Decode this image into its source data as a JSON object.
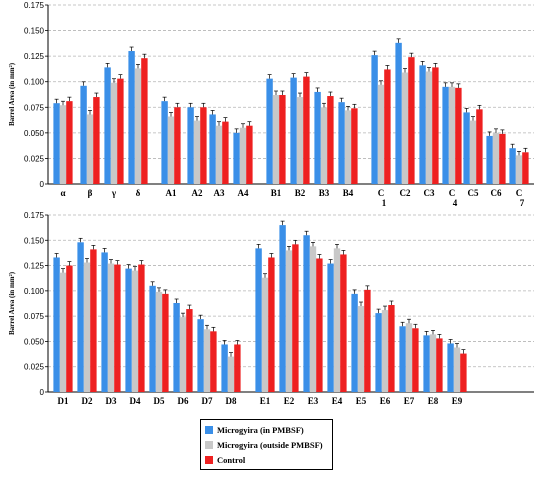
{
  "colors": {
    "pmbsf": "#3a8fe8",
    "outside": "#c8c8c8",
    "control": "#ee2020"
  },
  "legend": {
    "items": [
      {
        "label": "Microgyira (in PMBSF)",
        "color": "#3a8fe8"
      },
      {
        "label": "Microgyira (outside PMBSF)",
        "color": "#c8c8c8"
      },
      {
        "label": "Control",
        "color": "#ee2020"
      }
    ]
  },
  "chart_data": [
    {
      "type": "bar",
      "ylabel": "Barrel Area (in mm²)",
      "ylim": [
        0,
        0.175
      ],
      "yticks": [
        "0",
        "0.025",
        "0.050",
        "0.075",
        "0.100",
        "0.125",
        "0.150",
        "0.175"
      ],
      "categories": [
        "α",
        "β",
        "γ",
        "δ",
        "A1",
        "A2",
        "A3",
        "A4",
        "B1",
        "B2",
        "B3",
        "B4",
        "C 1",
        "C2",
        "C3",
        "C 4",
        "C5",
        "C6",
        "C 7"
      ],
      "series": [
        {
          "name": "Microgyira (in PMBSF)",
          "values": [
            0.079,
            0.096,
            0.114,
            0.13,
            0.081,
            0.075,
            0.068,
            0.05,
            0.103,
            0.104,
            0.09,
            0.08,
            0.126,
            0.138,
            0.116,
            0.095,
            0.07,
            0.047,
            0.035
          ]
        },
        {
          "name": "Microgyira (outside PMBSF)",
          "values": [
            0.077,
            0.068,
            0.099,
            0.113,
            0.066,
            0.062,
            0.057,
            0.055,
            0.087,
            0.085,
            0.075,
            0.072,
            0.097,
            0.109,
            0.11,
            0.095,
            0.062,
            0.05,
            0.028
          ]
        },
        {
          "name": "Control",
          "values": [
            0.081,
            0.085,
            0.103,
            0.123,
            0.075,
            0.075,
            0.061,
            0.057,
            0.087,
            0.105,
            0.086,
            0.074,
            0.112,
            0.124,
            0.114,
            0.094,
            0.073,
            0.049,
            0.031
          ]
        }
      ]
    },
    {
      "type": "bar",
      "ylabel": "Barrel Area (in mm²)",
      "ylim": [
        0,
        0.175
      ],
      "yticks": [
        "0",
        "0.025",
        "0.050",
        "0.075",
        "0.100",
        "0.125",
        "0.150",
        "0.175"
      ],
      "categories": [
        "D1",
        "D2",
        "D3",
        "D4",
        "D5",
        "D6",
        "D7",
        "D8",
        "E1",
        "E2",
        "E3",
        "E4",
        "E5",
        "E6",
        "E7",
        "E8",
        "E9"
      ],
      "series": [
        {
          "name": "Microgyira (in PMBSF)",
          "values": [
            0.133,
            0.148,
            0.138,
            0.122,
            0.105,
            0.088,
            0.072,
            0.047,
            0.142,
            0.165,
            0.155,
            0.127,
            0.097,
            0.078,
            0.065,
            0.056,
            0.048
          ]
        },
        {
          "name": "Microgyira (outside PMBSF)",
          "values": [
            0.118,
            0.128,
            0.127,
            0.12,
            0.099,
            0.074,
            0.062,
            0.035,
            0.113,
            0.14,
            0.144,
            0.142,
            0.085,
            0.081,
            0.068,
            0.057,
            0.044
          ]
        },
        {
          "name": "Control",
          "values": [
            0.125,
            0.141,
            0.126,
            0.126,
            0.097,
            0.082,
            0.06,
            0.047,
            0.133,
            0.146,
            0.132,
            0.136,
            0.101,
            0.086,
            0.063,
            0.053,
            0.038
          ]
        }
      ]
    }
  ]
}
